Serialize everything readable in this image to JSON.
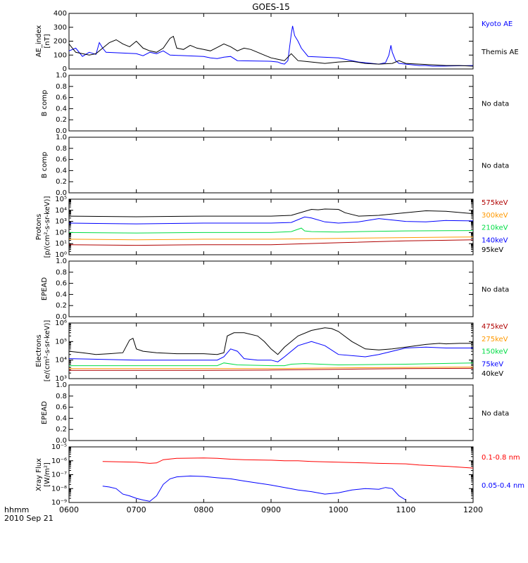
{
  "title": "GOES-15",
  "footer": {
    "time_unit": "hhmm",
    "date": "2010 Sep 21"
  },
  "x_ticks": [
    "0600",
    "0700",
    "0800",
    "0900",
    "1000",
    "1100",
    "1200"
  ],
  "colors": {
    "black": "#000000",
    "blue": "#0000ff",
    "red": "#ff0000",
    "orange": "#ff9900",
    "green": "#00dd44",
    "darkred": "#b00000"
  },
  "chart_data": [
    {
      "type": "line",
      "id": "ae",
      "ylabel": [
        "AE_index",
        "[nT]"
      ],
      "ylim": [
        0,
        400
      ],
      "yticks": [
        "0",
        "100",
        "200",
        "300",
        "400"
      ],
      "x_range": [
        "0600",
        "1200"
      ],
      "legend": [
        {
          "label": "Kyoto AE",
          "color": "#0000ff"
        },
        {
          "label": "Themis AE",
          "color": "#000000"
        }
      ],
      "series": [
        {
          "name": "Kyoto AE",
          "color": "#0000ff",
          "x": [
            "0600",
            "0610",
            "0620",
            "0630",
            "0640",
            "0645",
            "0650",
            "0655",
            "0700",
            "0710",
            "0720",
            "0730",
            "0740",
            "0750",
            "0800",
            "0810",
            "0820",
            "0830",
            "0840",
            "0850",
            "0900",
            "0910",
            "0915",
            "0920",
            "0925",
            "0930",
            "0932",
            "0935",
            "0940",
            "0945",
            "0950",
            "0955",
            "1000",
            "1010",
            "1020",
            "1030",
            "1040",
            "1050",
            "1060",
            "1070",
            "1075",
            "1078",
            "1080",
            "1085",
            "1090",
            "1100",
            "1110",
            "1120",
            "1130",
            "1140",
            "1150",
            "1200"
          ],
          "y": [
            130,
            150,
            90,
            120,
            105,
            190,
            150,
            120,
            110,
            95,
            120,
            110,
            130,
            100,
            90,
            80,
            75,
            85,
            90,
            60,
            55,
            50,
            40,
            35,
            60,
            250,
            310,
            240,
            200,
            150,
            120,
            90,
            80,
            70,
            60,
            50,
            45,
            40,
            35,
            45,
            100,
            170,
            120,
            60,
            40,
            35,
            30,
            25,
            25,
            20,
            20,
            25
          ]
        },
        {
          "name": "Themis AE",
          "color": "#000000",
          "x": [
            "0600",
            "0610",
            "0620",
            "0630",
            "0640",
            "0650",
            "0660",
            "0670",
            "0680",
            "0690",
            "0700",
            "0710",
            "0720",
            "0730",
            "0740",
            "0750",
            "0755",
            "0760",
            "0770",
            "0780",
            "0790",
            "0800",
            "0810",
            "0820",
            "0830",
            "0840",
            "0850",
            "0860",
            "0870",
            "0880",
            "0890",
            "0900",
            "0910",
            "0920",
            "0930",
            "0940",
            "0950",
            "0960",
            "0970",
            "0980",
            "0990",
            "1000",
            "1020",
            "1040",
            "1060",
            "1080",
            "1090",
            "1100",
            "1120",
            "1140",
            "1160",
            "1180",
            "1200"
          ],
          "y": [
            180,
            120,
            110,
            100,
            110,
            150,
            190,
            210,
            180,
            160,
            200,
            150,
            130,
            120,
            150,
            220,
            235,
            150,
            140,
            170,
            150,
            140,
            130,
            155,
            180,
            160,
            130,
            150,
            140,
            120,
            100,
            80,
            70,
            60,
            110,
            60,
            55,
            50,
            45,
            40,
            45,
            50,
            55,
            40,
            35,
            40,
            60,
            40,
            35,
            30,
            25,
            25,
            20
          ]
        }
      ]
    },
    {
      "type": "line",
      "id": "bcomp1",
      "ylabel": [
        "B comp"
      ],
      "ylim": [
        0,
        1
      ],
      "yticks": [
        "0.0",
        "0.2",
        "0.4",
        "0.6",
        "0.8",
        "1.0"
      ],
      "status": "No data",
      "series": []
    },
    {
      "type": "line",
      "id": "bcomp2",
      "ylabel": [
        "B comp"
      ],
      "ylim": [
        0,
        1
      ],
      "yticks": [
        "0.0",
        "0.2",
        "0.4",
        "0.6",
        "0.8",
        "1.0"
      ],
      "status": "No data",
      "series": []
    },
    {
      "type": "line",
      "id": "protons",
      "scale": "log",
      "ylabel": [
        "Protons",
        "[p/(cm²-s-sr-keV)]"
      ],
      "ylim": [
        1,
        100000
      ],
      "yticks": [
        "10⁰",
        "10¹",
        "10²",
        "10³",
        "10⁴",
        "10⁵"
      ],
      "legend": [
        {
          "label": "575keV",
          "color": "#b00000"
        },
        {
          "label": "300keV",
          "color": "#ff9900"
        },
        {
          "label": "210keV",
          "color": "#00dd44"
        },
        {
          "label": "140keV",
          "color": "#0000ff"
        },
        {
          "label": "95keV",
          "color": "#000000"
        }
      ],
      "series": [
        {
          "name": "95keV",
          "color": "#000000",
          "x": [
            "0600",
            "0700",
            "0800",
            "0900",
            "0930",
            "0960",
            "0970",
            "0980",
            "1000",
            "1010",
            "1030",
            "1060",
            "1100",
            "1130",
            "1160",
            "1200"
          ],
          "y": [
            3000,
            2600,
            3000,
            3000,
            3500,
            12000,
            11000,
            13000,
            12000,
            6000,
            3000,
            3500,
            6000,
            9000,
            8000,
            5000
          ]
        },
        {
          "name": "140keV",
          "color": "#0000ff",
          "x": [
            "0600",
            "0700",
            "0800",
            "0900",
            "0930",
            "0950",
            "0960",
            "0980",
            "1000",
            "1030",
            "1060",
            "1100",
            "1130",
            "1160",
            "1200"
          ],
          "y": [
            700,
            600,
            700,
            700,
            800,
            2500,
            2000,
            900,
            700,
            900,
            1800,
            1000,
            900,
            1200,
            1100
          ]
        },
        {
          "name": "210keV",
          "color": "#00dd44",
          "x": [
            "0600",
            "0700",
            "0800",
            "0900",
            "0930",
            "0945",
            "0950",
            "0960",
            "1000",
            "1060",
            "1100",
            "1200"
          ],
          "y": [
            100,
            90,
            100,
            100,
            120,
            250,
            140,
            120,
            110,
            130,
            140,
            150
          ]
        },
        {
          "name": "300keV",
          "color": "#ff9900",
          "x": [
            "0600",
            "0700",
            "0800",
            "0900",
            "1000",
            "1100",
            "1200"
          ],
          "y": [
            25,
            22,
            25,
            25,
            30,
            35,
            40
          ]
        },
        {
          "name": "575keV",
          "color": "#b00000",
          "x": [
            "0600",
            "0700",
            "0800",
            "0900",
            "1000",
            "1100",
            "1200"
          ],
          "y": [
            8,
            7,
            8,
            8,
            12,
            18,
            22
          ]
        }
      ]
    },
    {
      "type": "line",
      "id": "epead1",
      "ylabel": [
        "EPEAD"
      ],
      "ylim": [
        0,
        1
      ],
      "yticks": [
        "0.0",
        "0.2",
        "0.4",
        "0.6",
        "0.8",
        "1.0"
      ],
      "status": "No data",
      "series": []
    },
    {
      "type": "line",
      "id": "electrons",
      "scale": "log",
      "ylabel": [
        "Electrons",
        "[e/(cm²-s-sr-keV)]"
      ],
      "ylim": [
        1000,
        1000000
      ],
      "yticks": [
        "10³",
        "10⁴",
        "10⁵",
        "10⁶"
      ],
      "legend": [
        {
          "label": "475keV",
          "color": "#b00000"
        },
        {
          "label": "275keV",
          "color": "#ff9900"
        },
        {
          "label": "150keV",
          "color": "#00dd44"
        },
        {
          "label": "75keV",
          "color": "#0000ff"
        },
        {
          "label": "40keV",
          "color": "#000000"
        }
      ],
      "series": [
        {
          "name": "40keV",
          "color": "#000000",
          "x": [
            "0600",
            "0620",
            "0640",
            "0660",
            "0680",
            "0690",
            "0695",
            "0700",
            "0710",
            "0730",
            "0760",
            "0800",
            "0820",
            "0830",
            "0835",
            "0845",
            "0860",
            "0880",
            "0890",
            "0900",
            "0910",
            "0920",
            "0940",
            "0960",
            "0980",
            "0990",
            "1000",
            "1020",
            "1040",
            "1060",
            "1080",
            "1100",
            "1130",
            "1150",
            "1160",
            "1180",
            "1200"
          ],
          "y": [
            30000,
            25000,
            20000,
            22000,
            25000,
            120000,
            150000,
            40000,
            30000,
            25000,
            22000,
            22000,
            20000,
            25000,
            200000,
            300000,
            300000,
            200000,
            100000,
            40000,
            20000,
            50000,
            200000,
            400000,
            550000,
            500000,
            350000,
            100000,
            40000,
            35000,
            40000,
            50000,
            70000,
            80000,
            75000,
            80000,
            80000
          ]
        },
        {
          "name": "75keV",
          "color": "#0000ff",
          "x": [
            "0600",
            "0700",
            "0800",
            "0820",
            "0830",
            "0840",
            "0850",
            "0860",
            "0880",
            "0900",
            "0910",
            "0920",
            "0940",
            "0960",
            "0980",
            "1000",
            "1040",
            "1060",
            "1080",
            "1100",
            "1130",
            "1160",
            "1200"
          ],
          "y": [
            12000,
            10000,
            10000,
            10000,
            15000,
            40000,
            30000,
            12000,
            10000,
            10000,
            8000,
            15000,
            60000,
            100000,
            60000,
            20000,
            15000,
            20000,
            30000,
            45000,
            50000,
            45000,
            45000
          ]
        },
        {
          "name": "150keV",
          "color": "#00dd44",
          "x": [
            "0600",
            "0700",
            "0800",
            "0820",
            "0830",
            "0850",
            "0900",
            "0920",
            "0930",
            "0950",
            "1000",
            "1100",
            "1200"
          ],
          "y": [
            5000,
            5000,
            5000,
            5000,
            7000,
            5500,
            5000,
            5000,
            6000,
            6500,
            5500,
            6000,
            7000
          ]
        },
        {
          "name": "275keV",
          "color": "#ff9900",
          "x": [
            "0600",
            "0700",
            "0800",
            "0900",
            "1000",
            "1100",
            "1200"
          ],
          "y": [
            3500,
            3500,
            3500,
            3500,
            3800,
            4000,
            4200
          ]
        },
        {
          "name": "475keV",
          "color": "#b00000",
          "x": [
            "0600",
            "0700",
            "0800",
            "0900",
            "1000",
            "1100",
            "1200"
          ],
          "y": [
            2800,
            2800,
            2800,
            2900,
            3200,
            3500,
            3600
          ]
        }
      ]
    },
    {
      "type": "line",
      "id": "epead2",
      "ylabel": [
        "EPEAD"
      ],
      "ylim": [
        0,
        1
      ],
      "yticks": [
        "0.0",
        "0.2",
        "0.4",
        "0.6",
        "0.8",
        "1.0"
      ],
      "status": "No data",
      "series": []
    },
    {
      "type": "line",
      "id": "xray",
      "scale": "log",
      "ylabel": [
        "Xray Flux",
        "[W/m²]"
      ],
      "ylim": [
        1e-09,
        1e-05
      ],
      "yticks": [
        "10⁻⁹",
        "10⁻⁸",
        "10⁻⁷",
        "10⁻⁶",
        "10⁻⁵"
      ],
      "legend": [
        {
          "label": "0.1-0.8 nm",
          "color": "#ff0000"
        },
        {
          "label": "0.05-0.4 nm",
          "color": "#0000ff"
        }
      ],
      "series": [
        {
          "name": "0.1-0.8 nm",
          "color": "#ff0000",
          "x": [
            "0650",
            "0700",
            "0720",
            "0730",
            "0740",
            "0760",
            "0800",
            "0820",
            "0840",
            "0860",
            "0900",
            "0920",
            "0940",
            "0960",
            "1000",
            "1040",
            "1060",
            "1100",
            "1120",
            "1160",
            "1200"
          ],
          "y": [
            9e-07,
            8e-07,
            6.5e-07,
            7e-07,
            1.2e-06,
            1.5e-06,
            1.6e-06,
            1.5e-06,
            1.3e-06,
            1.2e-06,
            1.1e-06,
            1e-06,
            1e-06,
            9e-07,
            8e-07,
            7e-07,
            6.5e-07,
            6e-07,
            5e-07,
            4e-07,
            3e-07
          ]
        },
        {
          "name": "0.05-0.4 nm",
          "color": "#0000ff",
          "x": [
            "0650",
            "0660",
            "0670",
            "0680",
            "0690",
            "0700",
            "0710",
            "0720",
            "0730",
            "0740",
            "0750",
            "0760",
            "0780",
            "0800",
            "0820",
            "0840",
            "0860",
            "0880",
            "0900",
            "0920",
            "0940",
            "0960",
            "0980",
            "1000",
            "1020",
            "1040",
            "1060",
            "1070",
            "1080",
            "1090",
            "1100"
          ],
          "y": [
            1.5e-08,
            1.3e-08,
            1e-08,
            4e-09,
            3e-09,
            2e-09,
            1.5e-09,
            1.2e-09,
            3e-09,
            2e-08,
            5e-08,
            7e-08,
            8e-08,
            7.5e-08,
            6e-08,
            5e-08,
            3.5e-08,
            2.5e-08,
            1.8e-08,
            1.2e-08,
            8e-09,
            6e-09,
            4e-09,
            5e-09,
            8e-09,
            1e-08,
            9e-09,
            1.2e-08,
            1e-08,
            3e-09,
            1.5e-09
          ]
        }
      ]
    }
  ]
}
